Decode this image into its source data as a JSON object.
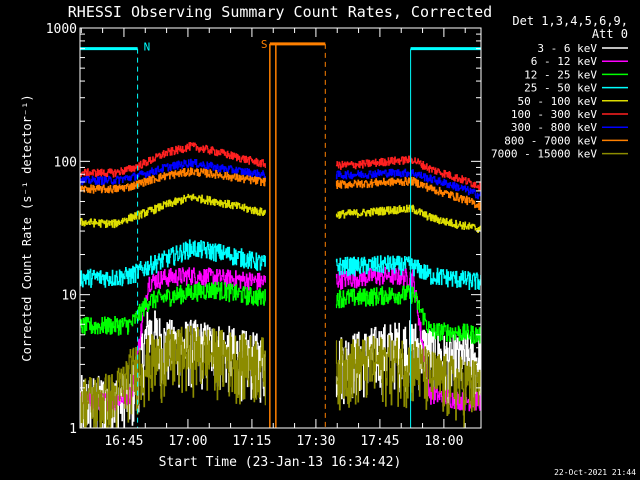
{
  "chart_data": {
    "type": "line",
    "title": "RHESSI Observing Summary Count Rates, Corrected",
    "xlabel": "Start Time (23-Jan-13 16:34:42)",
    "ylabel": "Corrected Count Rate (s⁻¹ detector⁻¹)",
    "y_scale": "log",
    "ylim": [
      1,
      1000
    ],
    "xlim_minutes_from_start": [
      0,
      94
    ],
    "x_ticks": [
      {
        "label": "16:45",
        "t": 10.3
      },
      {
        "label": "17:00",
        "t": 25.3
      },
      {
        "label": "17:15",
        "t": 40.3
      },
      {
        "label": "17:30",
        "t": 55.3
      },
      {
        "label": "17:45",
        "t": 70.3
      },
      {
        "label": "18:00",
        "t": 85.3
      }
    ],
    "y_ticks": [
      {
        "label": "1",
        "v": 1
      },
      {
        "label": "10",
        "v": 10
      },
      {
        "label": "100",
        "v": 100
      },
      {
        "label": "1000",
        "v": 1000
      }
    ],
    "legend_header": [
      "Det 1,3,4,5,6,9,",
      "Att 0"
    ],
    "legend_placement": "right",
    "series": [
      {
        "name": "3 - 6 keV",
        "color": "#ffffff",
        "x": [
          0,
          8,
          12,
          16,
          20,
          26,
          32,
          38,
          43.5,
          60,
          66,
          72,
          78,
          82,
          86,
          90,
          94
        ],
        "y": [
          1.6,
          1.6,
          1.8,
          5.5,
          4.2,
          4.2,
          4.0,
          3.5,
          3.2,
          3.2,
          3.5,
          4.0,
          4.2,
          3.8,
          3.2,
          3.4,
          3.2
        ]
      },
      {
        "name": "6 - 12 keV",
        "color": "#ff00ff",
        "x": [
          0,
          8,
          12,
          16,
          20,
          26,
          32,
          38,
          43.5,
          60,
          66,
          72,
          78,
          82,
          86,
          90,
          94
        ],
        "y": [
          1.6,
          1.6,
          1.8,
          12.5,
          13.5,
          14.0,
          13.5,
          13.0,
          12.5,
          13.0,
          13.5,
          14.0,
          13.5,
          1.8,
          1.7,
          1.6,
          1.6
        ]
      },
      {
        "name": "12 - 25 keV",
        "color": "#00ff00",
        "x": [
          0,
          8,
          12,
          16,
          20,
          26,
          32,
          38,
          43.5,
          60,
          66,
          72,
          78,
          82,
          86,
          90,
          94
        ],
        "y": [
          5.8,
          5.9,
          6.0,
          9.0,
          9.6,
          10.5,
          11.0,
          10.0,
          9.5,
          9.5,
          9.6,
          10.0,
          10.2,
          5.4,
          5.3,
          5.2,
          5.0
        ]
      },
      {
        "name": "25 - 50 keV",
        "color": "#00ffff",
        "x": [
          0,
          8,
          12,
          16,
          20,
          26,
          32,
          38,
          43.5,
          60,
          66,
          72,
          78,
          82,
          86,
          90,
          94
        ],
        "y": [
          13.5,
          13.5,
          14.0,
          16.5,
          18.5,
          22.5,
          21.0,
          19.0,
          17.0,
          16.5,
          16.5,
          17.0,
          16.5,
          14.0,
          13.5,
          13.0,
          12.5
        ]
      },
      {
        "name": "50 - 100 keV",
        "color": "#dddd00",
        "x": [
          0,
          8,
          12,
          16,
          20,
          26,
          32,
          38,
          43.5,
          60,
          66,
          72,
          78,
          82,
          86,
          90,
          94
        ],
        "y": [
          35,
          34,
          38,
          42,
          47,
          54,
          50,
          45,
          41,
          40,
          41,
          43,
          44,
          38,
          35,
          33,
          31
        ]
      },
      {
        "name": "100 - 300 keV",
        "color": "#ff2020",
        "x": [
          0,
          8,
          12,
          16,
          20,
          26,
          32,
          38,
          43.5,
          60,
          66,
          72,
          78,
          82,
          86,
          90,
          94
        ],
        "y": [
          82,
          82,
          88,
          100,
          115,
          130,
          118,
          105,
          95,
          93,
          95,
          100,
          103,
          88,
          80,
          72,
          65
        ]
      },
      {
        "name": "300 - 800 keV",
        "color": "#0000ff",
        "x": [
          0,
          8,
          12,
          16,
          20,
          26,
          32,
          38,
          43.5,
          60,
          66,
          72,
          78,
          82,
          86,
          90,
          94
        ],
        "y": [
          72,
          72,
          76,
          82,
          90,
          98,
          90,
          84,
          79,
          79,
          80,
          82,
          82,
          74,
          68,
          62,
          55
        ]
      },
      {
        "name": "800 - 7000 keV",
        "color": "#ff8000",
        "x": [
          0,
          8,
          12,
          16,
          20,
          26,
          32,
          38,
          43.5,
          60,
          66,
          72,
          78,
          82,
          86,
          90,
          94
        ],
        "y": [
          62,
          62,
          65,
          72,
          78,
          84,
          80,
          74,
          70,
          67,
          68,
          70,
          71,
          63,
          57,
          52,
          46
        ]
      },
      {
        "name": "7000 - 15000 keV",
        "color": "#8c8c00",
        "x": [
          0,
          8,
          12,
          16,
          20,
          26,
          32,
          38,
          43.5,
          60,
          66,
          72,
          78,
          82,
          86,
          90,
          94
        ],
        "y": [
          1.6,
          1.7,
          2.6,
          3.2,
          3.5,
          3.8,
          3.6,
          3.3,
          3.1,
          3.0,
          3.1,
          3.2,
          3.1,
          2.5,
          2.3,
          2.2,
          2.1
        ]
      }
    ],
    "annotations": [
      {
        "label": "N",
        "color": "#00ffff",
        "kind": "night",
        "intervals": [
          [
            0,
            13.5
          ],
          [
            77.5,
            94
          ]
        ],
        "level": 700
      },
      {
        "label": "S",
        "color": "#ff8000",
        "kind": "saa",
        "intervals": [
          [
            44.5,
            57.5
          ]
        ],
        "level": 760
      }
    ]
  },
  "footer": {
    "timestamp": "22-Oct-2021 21:44"
  }
}
